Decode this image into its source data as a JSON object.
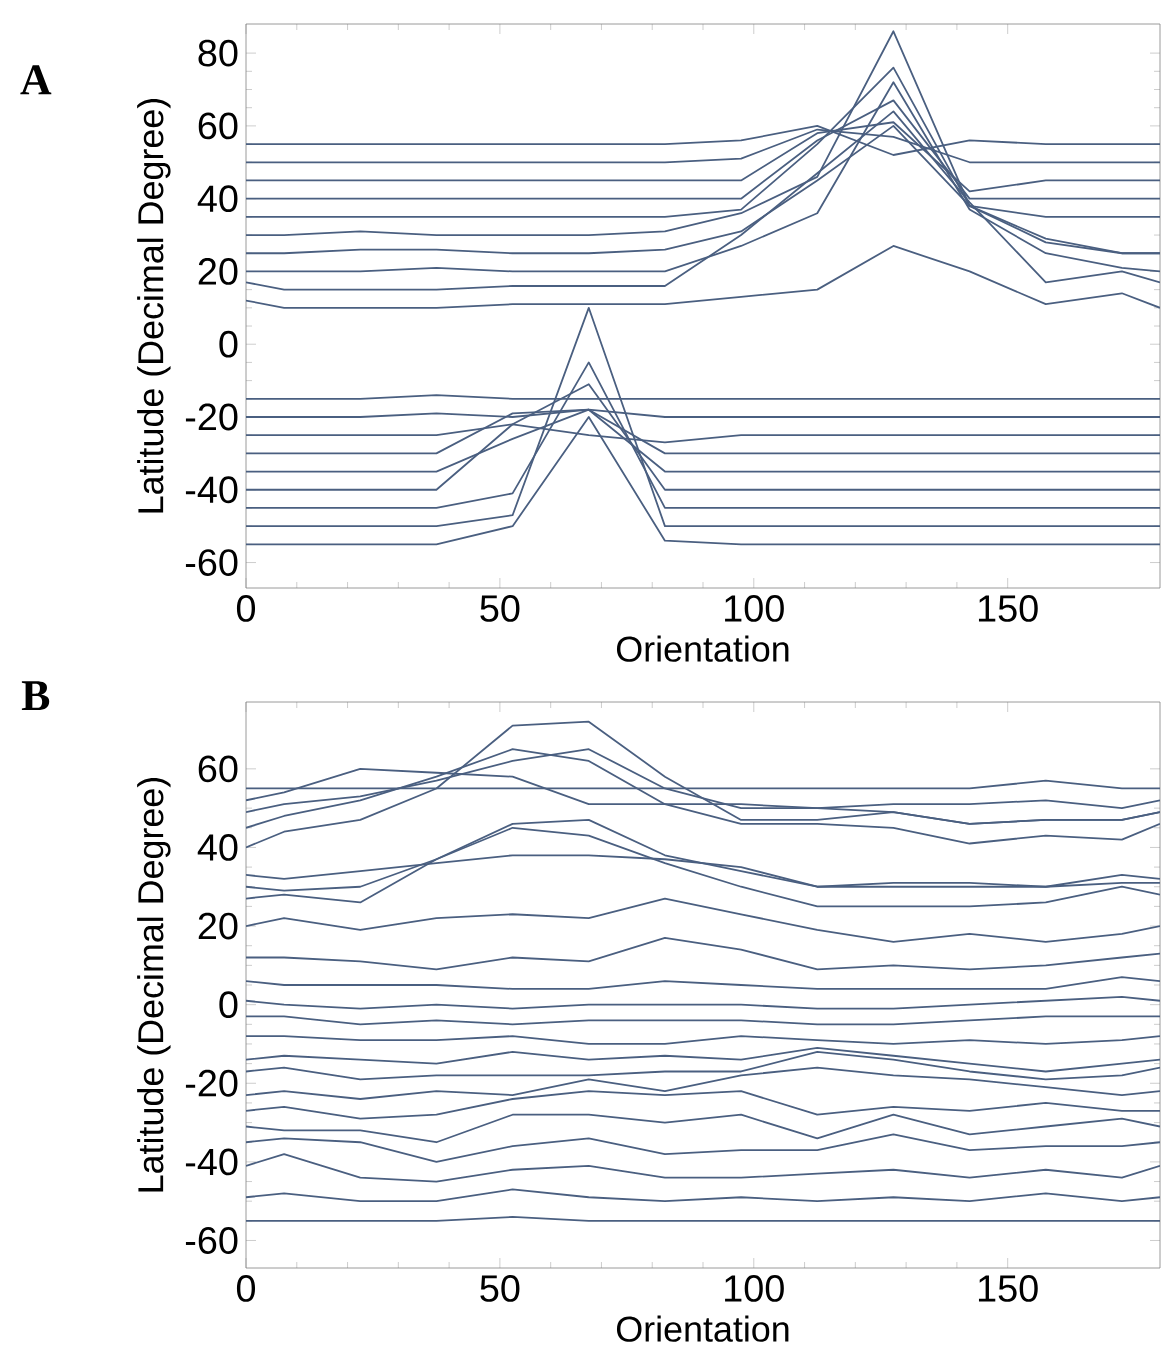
{
  "chart_data": [
    {
      "type": "line",
      "title": "A",
      "xlabel": "Orientation",
      "ylabel": "Latitude (Decimal Degree)",
      "xlim": [
        0,
        180
      ],
      "xticks": [
        0,
        50,
        100,
        150
      ],
      "ylim": [
        -67,
        88
      ],
      "yticks": [
        -60,
        -40,
        -20,
        0,
        20,
        40,
        60,
        80
      ],
      "grid": false,
      "x": [
        0,
        7.5,
        22.5,
        37.5,
        52.5,
        67.5,
        82.5,
        97.5,
        112.5,
        127.5,
        142.5,
        157.5,
        172.5,
        180
      ],
      "series": [
        {
          "color": "#4a5f80",
          "values": [
            55,
            55,
            55,
            55,
            55,
            55,
            55,
            56,
            60,
            52,
            56,
            55,
            55,
            55
          ]
        },
        {
          "color": "#4a5f80",
          "values": [
            50,
            50,
            50,
            50,
            50,
            50,
            50,
            51,
            59,
            57,
            50,
            50,
            50,
            50
          ]
        },
        {
          "color": "#4a5f80",
          "values": [
            45,
            45,
            45,
            45,
            45,
            45,
            45,
            45,
            58,
            61,
            42,
            45,
            45,
            45
          ]
        },
        {
          "color": "#4a5f80",
          "values": [
            40,
            40,
            40,
            40,
            40,
            40,
            40,
            40,
            56,
            67,
            40,
            40,
            40,
            40
          ]
        },
        {
          "color": "#4a5f80",
          "values": [
            35,
            35,
            35,
            35,
            35,
            35,
            35,
            37,
            55,
            76,
            38,
            35,
            35,
            35
          ]
        },
        {
          "color": "#4a5f80",
          "values": [
            30,
            30,
            31,
            30,
            30,
            30,
            31,
            36,
            46,
            86,
            38,
            29,
            25,
            25
          ]
        },
        {
          "color": "#4a5f80",
          "values": [
            25,
            25,
            26,
            26,
            25,
            25,
            26,
            31,
            45,
            60,
            38,
            28,
            25,
            25
          ]
        },
        {
          "color": "#4a5f80",
          "values": [
            20,
            20,
            20,
            21,
            20,
            20,
            20,
            27,
            36,
            72,
            37,
            25,
            21,
            20
          ]
        },
        {
          "color": "#4a5f80",
          "values": [
            17,
            15,
            15,
            15,
            16,
            16,
            16,
            30,
            47,
            64,
            39,
            17,
            20,
            17
          ]
        },
        {
          "color": "#4a5f80",
          "values": [
            12,
            10,
            10,
            10,
            11,
            11,
            11,
            13,
            15,
            27,
            20,
            11,
            14,
            10
          ]
        },
        {
          "color": "#4a5f80",
          "values": [
            -15,
            -15,
            -15,
            -14,
            -15,
            -15,
            -15,
            -15,
            -15,
            -15,
            -15,
            -15,
            -15,
            -15
          ]
        },
        {
          "color": "#4a5f80",
          "values": [
            -20,
            -20,
            -20,
            -19,
            -20,
            -18,
            -20,
            -20,
            -20,
            -20,
            -20,
            -20,
            -20,
            -20
          ]
        },
        {
          "color": "#4a5f80",
          "values": [
            -25,
            -25,
            -25,
            -25,
            -22,
            -25,
            -27,
            -25,
            -25,
            -25,
            -25,
            -25,
            -25,
            -25
          ]
        },
        {
          "color": "#4a5f80",
          "values": [
            -30,
            -30,
            -30,
            -30,
            -19,
            -18,
            -30,
            -30,
            -30,
            -30,
            -30,
            -30,
            -30,
            -30
          ]
        },
        {
          "color": "#4a5f80",
          "values": [
            -35,
            -35,
            -35,
            -35,
            -26,
            -18,
            -35,
            -35,
            -35,
            -35,
            -35,
            -35,
            -35,
            -35
          ]
        },
        {
          "color": "#4a5f80",
          "values": [
            -40,
            -40,
            -40,
            -40,
            -22,
            -11,
            -40,
            -40,
            -40,
            -40,
            -40,
            -40,
            -40,
            -40
          ]
        },
        {
          "color": "#4a5f80",
          "values": [
            -45,
            -45,
            -45,
            -45,
            -41,
            -5,
            -45,
            -45,
            -45,
            -45,
            -45,
            -45,
            -45,
            -45
          ]
        },
        {
          "color": "#4a5f80",
          "values": [
            -50,
            -50,
            -50,
            -50,
            -47,
            10,
            -50,
            -50,
            -50,
            -50,
            -50,
            -50,
            -50,
            -50
          ]
        },
        {
          "color": "#4a5f80",
          "values": [
            -55,
            -55,
            -55,
            -55,
            -50,
            -20,
            -54,
            -55,
            -55,
            -55,
            -55,
            -55,
            -55,
            -55
          ]
        }
      ]
    },
    {
      "type": "line",
      "title": "B",
      "xlabel": "Orientation",
      "ylabel": "Latitude (Decimal Degree)",
      "xlim": [
        0,
        180
      ],
      "xticks": [
        0,
        50,
        100,
        150
      ],
      "ylim": [
        -67,
        77
      ],
      "yticks": [
        -60,
        -40,
        -20,
        0,
        20,
        40,
        60
      ],
      "grid": false,
      "x": [
        0,
        7.5,
        22.5,
        37.5,
        52.5,
        67.5,
        82.5,
        97.5,
        112.5,
        127.5,
        142.5,
        157.5,
        172.5,
        180
      ],
      "series": [
        {
          "color": "#4a5f80",
          "values": [
            55,
            55,
            55,
            55,
            55,
            55,
            55,
            55,
            55,
            55,
            55,
            57,
            55,
            55
          ]
        },
        {
          "color": "#4a5f80",
          "values": [
            52,
            54,
            60,
            59,
            58,
            51,
            51,
            51,
            50,
            51,
            51,
            52,
            50,
            52
          ]
        },
        {
          "color": "#4a5f80",
          "values": [
            49,
            51,
            53,
            57,
            62,
            65,
            55,
            50,
            50,
            49,
            46,
            47,
            47,
            49
          ]
        },
        {
          "color": "#4a5f80",
          "values": [
            45,
            48,
            52,
            58,
            65,
            62,
            51,
            46,
            46,
            45,
            41,
            43,
            42,
            46
          ]
        },
        {
          "color": "#4a5f80",
          "values": [
            40,
            44,
            47,
            55,
            71,
            72,
            58,
            47,
            47,
            49,
            46,
            47,
            47,
            49
          ]
        },
        {
          "color": "#4a5f80",
          "values": [
            33,
            32,
            34,
            36,
            38,
            38,
            37,
            35,
            30,
            31,
            31,
            30,
            33,
            32
          ]
        },
        {
          "color": "#4a5f80",
          "values": [
            30,
            29,
            30,
            37,
            46,
            47,
            38,
            34,
            30,
            30,
            30,
            30,
            31,
            31
          ]
        },
        {
          "color": "#4a5f80",
          "values": [
            27,
            28,
            26,
            37,
            45,
            43,
            36,
            30,
            25,
            25,
            25,
            26,
            30,
            28
          ]
        },
        {
          "color": "#4a5f80",
          "values": [
            20,
            22,
            19,
            22,
            23,
            22,
            27,
            23,
            19,
            16,
            18,
            16,
            18,
            20
          ]
        },
        {
          "color": "#4a5f80",
          "values": [
            12,
            12,
            11,
            9,
            12,
            11,
            17,
            14,
            9,
            10,
            9,
            10,
            12,
            13
          ]
        },
        {
          "color": "#4a5f80",
          "values": [
            6,
            5,
            5,
            5,
            4,
            4,
            6,
            5,
            4,
            4,
            4,
            4,
            7,
            6
          ]
        },
        {
          "color": "#4a5f80",
          "values": [
            1,
            0,
            -1,
            0,
            -1,
            0,
            0,
            0,
            -1,
            -1,
            0,
            1,
            2,
            1
          ]
        },
        {
          "color": "#4a5f80",
          "values": [
            -3,
            -3,
            -5,
            -4,
            -5,
            -4,
            -4,
            -4,
            -5,
            -5,
            -4,
            -3,
            -3,
            -3
          ]
        },
        {
          "color": "#4a5f80",
          "values": [
            -8,
            -8,
            -9,
            -9,
            -8,
            -10,
            -10,
            -8,
            -9,
            -10,
            -9,
            -10,
            -9,
            -8
          ]
        },
        {
          "color": "#4a5f80",
          "values": [
            -14,
            -13,
            -14,
            -15,
            -12,
            -14,
            -13,
            -14,
            -11,
            -13,
            -15,
            -17,
            -15,
            -14
          ]
        },
        {
          "color": "#4a5f80",
          "values": [
            -17,
            -16,
            -19,
            -18,
            -18,
            -18,
            -17,
            -17,
            -12,
            -14,
            -17,
            -19,
            -18,
            -16
          ]
        },
        {
          "color": "#4a5f80",
          "values": [
            -23,
            -22,
            -24,
            -22,
            -23,
            -19,
            -22,
            -18,
            -16,
            -18,
            -19,
            -21,
            -23,
            -22
          ]
        },
        {
          "color": "#4a5f80",
          "values": [
            -27,
            -26,
            -29,
            -28,
            -24,
            -22,
            -23,
            -22,
            -28,
            -26,
            -27,
            -25,
            -27,
            -27
          ]
        },
        {
          "color": "#4a5f80",
          "values": [
            -31,
            -32,
            -32,
            -35,
            -28,
            -28,
            -30,
            -28,
            -34,
            -28,
            -33,
            -31,
            -29,
            -31
          ]
        },
        {
          "color": "#4a5f80",
          "values": [
            -35,
            -34,
            -35,
            -40,
            -36,
            -34,
            -38,
            -37,
            -37,
            -33,
            -37,
            -36,
            -36,
            -35
          ]
        },
        {
          "color": "#4a5f80",
          "values": [
            -41,
            -38,
            -44,
            -45,
            -42,
            -41,
            -44,
            -44,
            -43,
            -42,
            -44,
            -42,
            -44,
            -41
          ]
        },
        {
          "color": "#4a5f80",
          "values": [
            -49,
            -48,
            -50,
            -50,
            -47,
            -49,
            -50,
            -49,
            -50,
            -49,
            -50,
            -48,
            -50,
            -49
          ]
        },
        {
          "color": "#4a5f80",
          "values": [
            -55,
            -55,
            -55,
            -55,
            -54,
            -55,
            -55,
            -55,
            -55,
            -55,
            -55,
            -55,
            -55,
            -55
          ]
        }
      ]
    }
  ]
}
